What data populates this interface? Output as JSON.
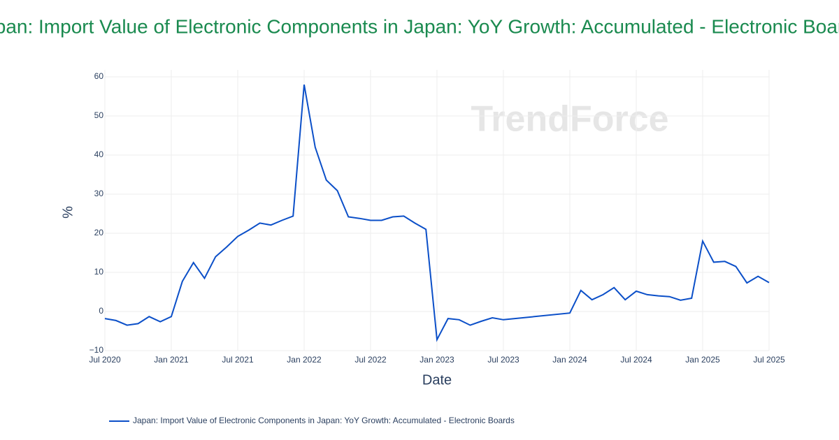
{
  "chart_data": {
    "type": "line",
    "title": "Japan: Import Value of Electronic Components in Japan: YoY Growth: Accumulated - Electronic Boards",
    "x_label": "Date",
    "y_label": "%",
    "watermark": "TrendForce",
    "x": [
      "2020-07",
      "2020-08",
      "2020-09",
      "2020-10",
      "2020-11",
      "2020-12",
      "2021-01",
      "2021-02",
      "2021-03",
      "2021-04",
      "2021-05",
      "2021-06",
      "2021-07",
      "2021-08",
      "2021-09",
      "2021-10",
      "2021-11",
      "2021-12",
      "2022-01",
      "2022-02",
      "2022-03",
      "2022-04",
      "2022-05",
      "2022-06",
      "2022-07",
      "2022-08",
      "2022-09",
      "2022-10",
      "2022-11",
      "2022-12",
      "2023-01",
      "2023-02",
      "2023-03",
      "2023-04",
      "2023-05",
      "2023-06",
      "2023-07",
      "2024-01",
      "2024-02",
      "2024-03",
      "2024-04",
      "2024-05",
      "2024-06",
      "2024-07",
      "2024-08",
      "2024-09",
      "2024-10",
      "2024-11",
      "2024-12",
      "2025-01",
      "2025-02",
      "2025-03",
      "2025-04",
      "2025-05",
      "2025-06",
      "2025-07"
    ],
    "series": [
      {
        "name": "Japan: Import Value of Electronic Components in Japan: YoY Growth: Accumulated - Electronic Boards",
        "color": "#0b4fc8",
        "values": [
          -1.8,
          -2.3,
          -3.5,
          -3.1,
          -1.3,
          -2.6,
          -1.3,
          7.7,
          12.5,
          8.5,
          14,
          16.5,
          19.2,
          20.8,
          22.6,
          22.1,
          23.3,
          24.4,
          58,
          42,
          33.6,
          30.9,
          24.2,
          23.8,
          23.3,
          23.3,
          24.2,
          24.4,
          22.6,
          21,
          -7.2,
          -1.8,
          -2.1,
          -3.5,
          -2.5,
          -1.6,
          -2.1,
          -0.4,
          5.4,
          3,
          4.3,
          6.1,
          3,
          5.2,
          4.3,
          4,
          3.8,
          2.9,
          3.4,
          18,
          12.6,
          12.8,
          11.5,
          7.3,
          9,
          7.4
        ]
      }
    ],
    "xlim": [
      "2020-07",
      "2025-07"
    ],
    "xticks": [
      {
        "value": "2020-07",
        "label": "Jul 2020"
      },
      {
        "value": "2021-01",
        "label": "Jan 2021"
      },
      {
        "value": "2021-07",
        "label": "Jul 2021"
      },
      {
        "value": "2022-01",
        "label": "Jan 2022"
      },
      {
        "value": "2022-07",
        "label": "Jul 2022"
      },
      {
        "value": "2023-01",
        "label": "Jan 2023"
      },
      {
        "value": "2023-07",
        "label": "Jul 2023"
      },
      {
        "value": "2024-01",
        "label": "Jan 2024"
      },
      {
        "value": "2024-07",
        "label": "Jul 2024"
      },
      {
        "value": "2025-01",
        "label": "Jan 2025"
      },
      {
        "value": "2025-07",
        "label": "Jul 2025"
      }
    ],
    "ylim": [
      -10,
      60
    ],
    "yticks": [
      {
        "value": -10,
        "label": "−10"
      },
      0,
      10,
      20,
      30,
      40,
      50,
      60
    ],
    "grid": true
  }
}
